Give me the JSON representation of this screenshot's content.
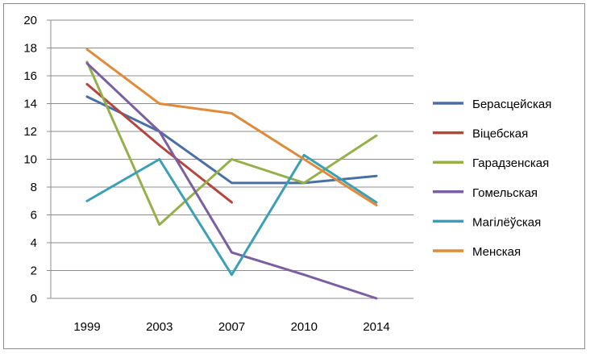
{
  "chart_data": {
    "type": "line",
    "title": "",
    "xlabel": "",
    "ylabel": "",
    "categories": [
      "1999",
      "2003",
      "2007",
      "2010",
      "2014"
    ],
    "ylim": [
      0,
      20
    ],
    "yticks": [
      0,
      2,
      4,
      6,
      8,
      10,
      12,
      14,
      16,
      18,
      20
    ],
    "grid": "horizontal",
    "legend_position": "right",
    "series": [
      {
        "name": "Берасцейская",
        "color": "#4a6fa5",
        "values": [
          14.5,
          12.0,
          8.3,
          8.3,
          8.8
        ]
      },
      {
        "name": "Віцебская",
        "color": "#b5453f",
        "values": [
          15.4,
          11.0,
          6.9,
          null,
          null
        ]
      },
      {
        "name": "Гарадзенская",
        "color": "#95b04a",
        "values": [
          17.0,
          5.3,
          10.0,
          8.3,
          11.7
        ]
      },
      {
        "name": "Гомельская",
        "color": "#7b5fa0",
        "values": [
          16.9,
          12.0,
          3.3,
          1.7,
          0.0
        ]
      },
      {
        "name": "Магілёўская",
        "color": "#3b9fb5",
        "values": [
          7.0,
          10.0,
          1.7,
          10.3,
          6.9
        ]
      },
      {
        "name": "Менская",
        "color": "#e08b3c",
        "values": [
          17.9,
          14.0,
          13.3,
          10.0,
          6.7
        ]
      }
    ]
  }
}
